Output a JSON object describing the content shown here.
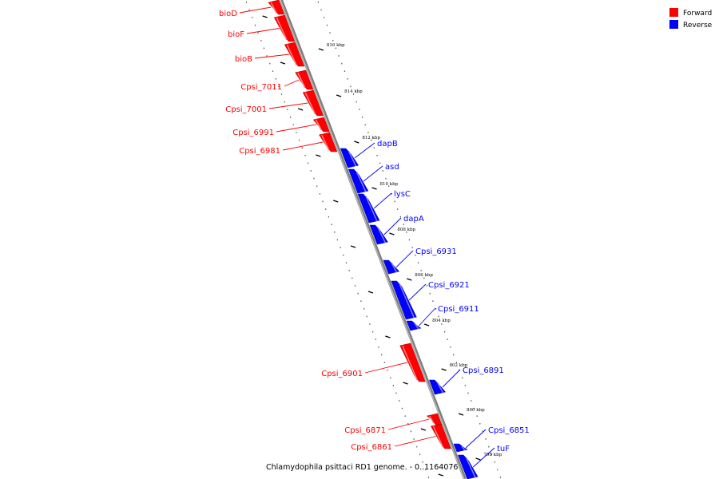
{
  "legend": {
    "items": [
      {
        "label": "Forward",
        "color": "#ff0000"
      },
      {
        "label": "Reverse",
        "color": "#0000ff"
      }
    ]
  },
  "caption": "Chlamydophila psittaci RD1 genome. - 0..1164076",
  "colors": {
    "forward": "#ff0000",
    "forward_dark": "#b20000",
    "forward_light": "#ff8080",
    "reverse": "#0000ff",
    "reverse_dark": "#0000aa",
    "reverse_light": "#8080ff",
    "backbone": "#7f7f7f"
  },
  "kbp_ticks": [
    "816 kbp",
    "814 kbp",
    "812 kbp",
    "810 kbp",
    "808 kbp",
    "806 kbp",
    "804 kbp",
    "802 kbp",
    "800 kbp",
    "798 kbp"
  ],
  "genes": [
    {
      "name": "bioD",
      "strand": "forward"
    },
    {
      "name": "bioF",
      "strand": "forward"
    },
    {
      "name": "bioB",
      "strand": "forward"
    },
    {
      "name": "Cpsi_7011",
      "strand": "forward"
    },
    {
      "name": "Cpsi_7001",
      "strand": "forward"
    },
    {
      "name": "Cpsi_6991",
      "strand": "forward"
    },
    {
      "name": "Cpsi_6981",
      "strand": "forward"
    },
    {
      "name": "dapB",
      "strand": "reverse"
    },
    {
      "name": "asd",
      "strand": "reverse"
    },
    {
      "name": "lysC",
      "strand": "reverse"
    },
    {
      "name": "dapA",
      "strand": "reverse"
    },
    {
      "name": "Cpsi_6931",
      "strand": "reverse"
    },
    {
      "name": "Cpsi_6921",
      "strand": "reverse"
    },
    {
      "name": "Cpsi_6911",
      "strand": "reverse"
    },
    {
      "name": "Cpsi_6901",
      "strand": "forward"
    },
    {
      "name": "Cpsi_6891",
      "strand": "reverse"
    },
    {
      "name": "Cpsi_6871",
      "strand": "forward"
    },
    {
      "name": "Cpsi_6861",
      "strand": "forward"
    },
    {
      "name": "Cpsi_6851",
      "strand": "reverse"
    },
    {
      "name": "tuF",
      "strand": "reverse"
    }
  ]
}
